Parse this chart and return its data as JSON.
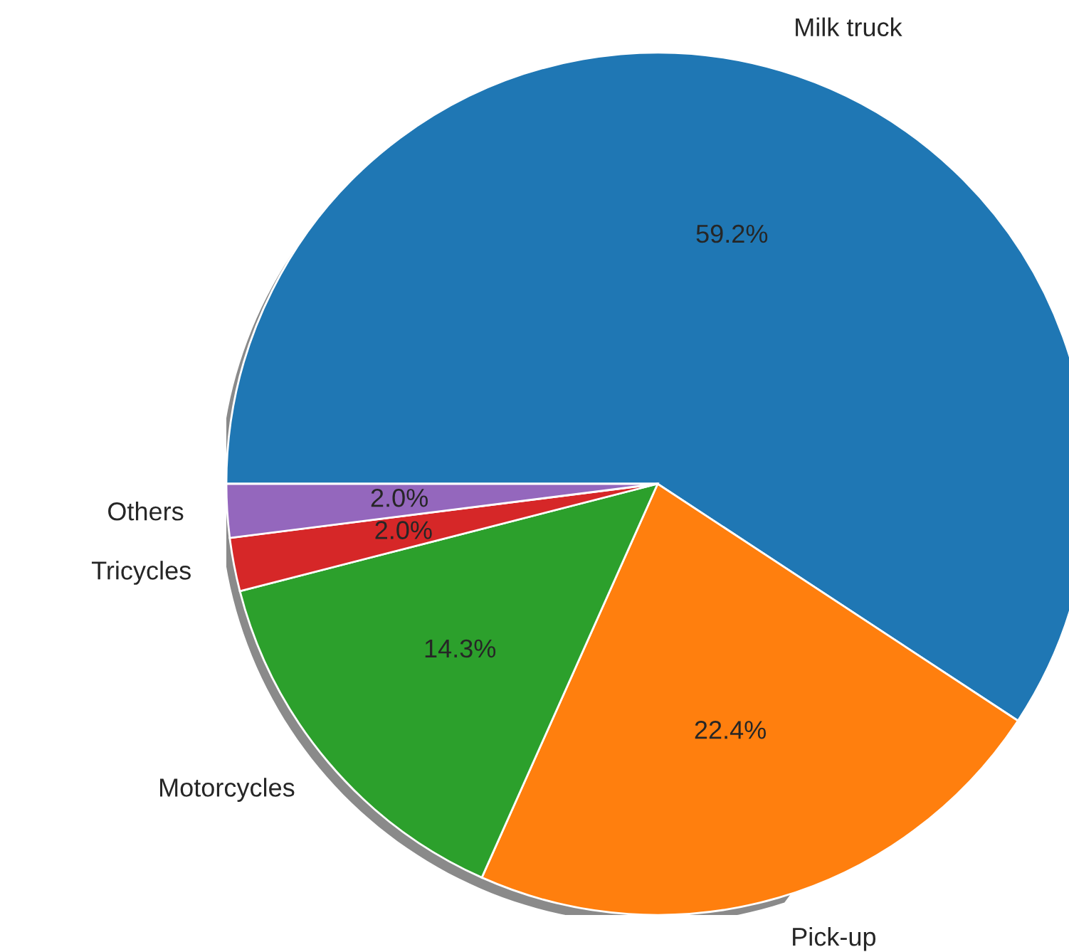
{
  "chart_data": {
    "type": "pie",
    "categories": [
      "Milk truck",
      "Pick-up",
      "Motorcycles",
      "Tricycles",
      "Others"
    ],
    "values": [
      59.2,
      22.4,
      14.3,
      2.0,
      2.0
    ],
    "value_labels": [
      "59.2%",
      "22.4%",
      "14.3%",
      "2.0%",
      "2.0%"
    ],
    "colors": [
      "#1f77b4",
      "#ff7f0e",
      "#2ca02c",
      "#d62728",
      "#9467bd"
    ]
  }
}
